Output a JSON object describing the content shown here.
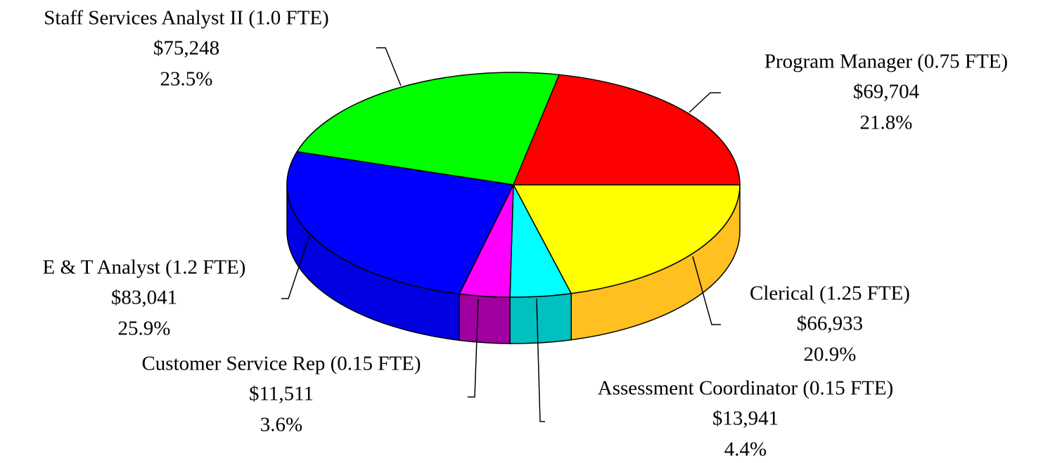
{
  "chart_data": {
    "type": "pie3d",
    "categories": [
      "Clerical (1.25 FTE)",
      "Assessment Coordinator (0.15 FTE)",
      "Customer Service Rep (0.15 FTE)",
      "E & T Analyst (1.2 FTE)",
      "Staff Services Analyst II (1.0 FTE)",
      "Program Manager (0.75 FTE)"
    ],
    "values": [
      66933,
      13941,
      11511,
      83041,
      75248,
      69704
    ],
    "value_labels": [
      "$66,933",
      "$13,941",
      "$11,511",
      "$83,041",
      "$75,248",
      "$69,704"
    ],
    "percents": [
      20.9,
      4.4,
      3.6,
      25.9,
      23.5,
      21.8
    ],
    "percent_labels": [
      "20.9%",
      "4.4%",
      "3.6%",
      "25.9%",
      "23.5%",
      "21.8%"
    ],
    "colors": [
      "#ffff00",
      "#00ffff",
      "#ff00ff",
      "#0000ff",
      "#00ff00",
      "#ff0000"
    ],
    "side_colors": [
      "#ffc020",
      "#00c0c0",
      "#a000a0",
      "#0000e0",
      "#00c000",
      "#c00000"
    ]
  }
}
